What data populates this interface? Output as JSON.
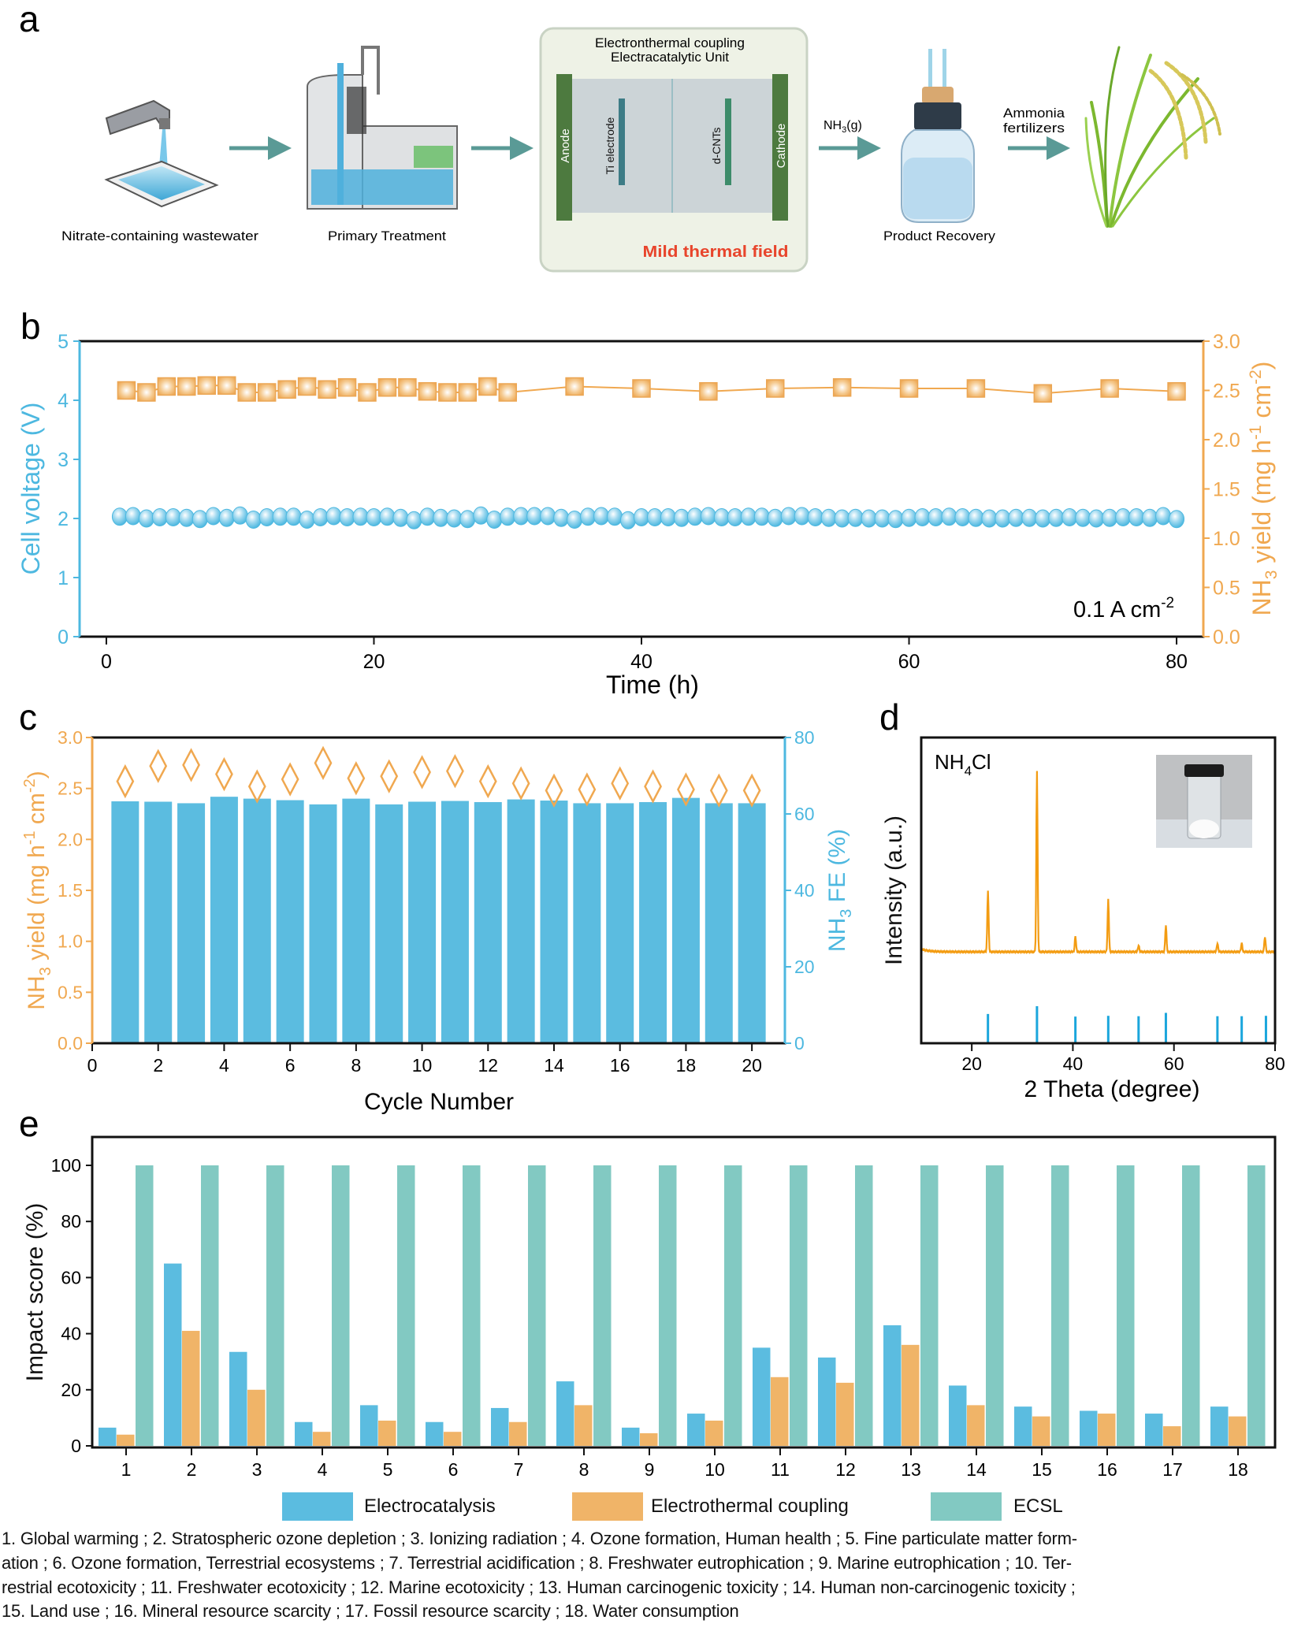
{
  "panel_labels": {
    "a": "a",
    "b": "b",
    "c": "c",
    "d": "d",
    "e": "e"
  },
  "colors": {
    "electrocatalysis": "#5BBCE0",
    "electrothermal": "#F0B468",
    "ecsl": "#82C9C2",
    "voltage": "#4DB8E0",
    "yield": "#F0A850",
    "xrd": "#F39C12",
    "reference": "#1BA6DC",
    "thermal_text": "#E8452C",
    "arrow": "#5A9A96"
  },
  "schematic": {
    "step1": "Nitrate-containing wastewater",
    "step2": "Primary Treatment",
    "unit_title_1": "Electronthermal coupling",
    "unit_title_2": "Electracatalytic Unit",
    "anode": "Anode",
    "ti_electrode": "Ti electrode",
    "dcnts": "d-CNTs",
    "cathode": "Cathode",
    "thermal": "Mild thermal field",
    "nh3_main": "NH",
    "nh3_sub": "3",
    "nh3_tail": "(g)",
    "step4": "Product Recovery",
    "fert_1": "Ammonia",
    "fert_2": "fertilizers"
  },
  "chart_data": [
    {
      "panel": "b",
      "type": "scatter",
      "xlabel": "Time (h)",
      "xlim": [
        -2,
        82
      ],
      "xticks": [
        "0",
        "20",
        "40",
        "60",
        "80"
      ],
      "ylabel_left": "Cell voltage (V)",
      "ylim_left": [
        0,
        5
      ],
      "yticks_left": [
        "0",
        "1",
        "2",
        "3",
        "4",
        "5"
      ],
      "ylabel_right_parts": [
        "NH",
        "3",
        " yield (mg h",
        "-1",
        " cm",
        "-2",
        ")"
      ],
      "ylim_right": [
        0,
        3.0
      ],
      "yticks_right": [
        "0.0",
        "0.5",
        "1.0",
        "1.5",
        "2.0",
        "2.5",
        "3.0"
      ],
      "annotation_parts": [
        "0.1 A cm",
        "-2"
      ],
      "voltage": {
        "marker": "circle",
        "x": [
          1,
          2,
          3,
          4,
          5,
          6,
          7,
          8,
          9,
          10,
          11,
          12,
          13,
          14,
          15,
          16,
          17,
          18,
          19,
          20,
          21,
          22,
          23,
          24,
          25,
          26,
          27,
          28,
          29,
          30,
          31,
          32,
          33,
          34,
          35,
          36,
          37,
          38,
          39,
          40,
          41,
          42,
          43,
          44,
          45,
          46,
          47,
          48,
          49,
          50,
          51,
          52,
          53,
          54,
          55,
          56,
          57,
          58,
          59,
          60,
          61,
          62,
          63,
          64,
          65,
          66,
          67,
          68,
          69,
          70,
          71,
          72,
          73,
          74,
          75,
          76,
          77,
          78,
          79,
          80
        ],
        "y": [
          2.03,
          2.04,
          2.0,
          2.02,
          2.02,
          2.01,
          1.99,
          2.04,
          2.01,
          2.05,
          1.98,
          2.02,
          2.03,
          2.03,
          1.98,
          2.02,
          2.04,
          2.02,
          2.03,
          2.02,
          2.03,
          2.01,
          1.97,
          2.03,
          2.01,
          2.0,
          1.99,
          2.05,
          1.98,
          2.03,
          2.04,
          2.04,
          2.04,
          2.01,
          1.98,
          2.03,
          2.04,
          2.03,
          1.97,
          2.02,
          2.02,
          2.02,
          2.01,
          2.03,
          2.04,
          2.02,
          2.02,
          2.03,
          2.03,
          2.01,
          2.04,
          2.04,
          2.02,
          2.01,
          2.0,
          2.01,
          2.0,
          2.0,
          1.99,
          2.01,
          2.02,
          2.02,
          2.03,
          2.02,
          2.01,
          2.0,
          2.0,
          2.01,
          2.01,
          2.0,
          2.01,
          2.02,
          2.01,
          2.0,
          2.01,
          2.02,
          2.02,
          2.01,
          2.04,
          1.99
        ]
      },
      "nh3_yield": {
        "marker": "square",
        "x": [
          1.5,
          3,
          4.5,
          6,
          7.5,
          9,
          10.5,
          12,
          13.5,
          15,
          16.5,
          18,
          19.5,
          21,
          22.5,
          24,
          25.5,
          27,
          28.5,
          30,
          35,
          40,
          45,
          50,
          55,
          60,
          65,
          70,
          75,
          80
        ],
        "y": [
          2.5,
          2.48,
          2.54,
          2.54,
          2.55,
          2.55,
          2.48,
          2.48,
          2.51,
          2.54,
          2.51,
          2.53,
          2.48,
          2.53,
          2.53,
          2.49,
          2.48,
          2.48,
          2.54,
          2.48,
          2.54,
          2.52,
          2.49,
          2.52,
          2.53,
          2.52,
          2.52,
          2.47,
          2.52,
          2.49
        ]
      }
    },
    {
      "panel": "c",
      "type": "bar",
      "xlabel": "Cycle Number",
      "xlim": [
        0,
        21
      ],
      "xticks": [
        "0",
        "2",
        "4",
        "6",
        "8",
        "10",
        "12",
        "14",
        "16",
        "18",
        "20"
      ],
      "ylabel_left_parts": [
        "NH",
        "3",
        " yield (mg h",
        "-1",
        " cm",
        "-2",
        ")"
      ],
      "ylim_left": [
        0,
        3.0
      ],
      "yticks_left": [
        "0.0",
        "0.5",
        "1.0",
        "1.5",
        "2.0",
        "2.5",
        "3.0"
      ],
      "ylabel_right_parts": [
        "NH",
        "3",
        " FE (%)"
      ],
      "ylim_right": [
        0,
        80
      ],
      "yticks_right": [
        "0",
        "20",
        "40",
        "60",
        "80"
      ],
      "cycles": [
        1,
        2,
        3,
        4,
        5,
        6,
        7,
        8,
        9,
        10,
        11,
        12,
        13,
        14,
        15,
        16,
        17,
        18,
        19,
        20
      ],
      "fe_bars": [
        63.3,
        63.2,
        62.8,
        64.5,
        64.0,
        63.6,
        62.5,
        64.0,
        62.5,
        63.2,
        63.4,
        63.1,
        63.8,
        63.5,
        62.8,
        62.8,
        63.1,
        64.2,
        62.8,
        62.8
      ],
      "yield_diamonds": [
        2.57,
        2.72,
        2.73,
        2.64,
        2.52,
        2.59,
        2.75,
        2.6,
        2.62,
        2.66,
        2.67,
        2.57,
        2.55,
        2.48,
        2.49,
        2.55,
        2.52,
        2.49,
        2.48,
        2.48
      ]
    },
    {
      "panel": "d",
      "type": "line",
      "xlabel": "2 Theta (degree)",
      "ylabel": "Intensity (a.u.)",
      "xlim": [
        10,
        80
      ],
      "xticks": [
        "20",
        "40",
        "60",
        "80"
      ],
      "sample_parts": [
        "NH",
        "4",
        "Cl"
      ],
      "peaks_2theta": [
        23.2,
        32.9,
        40.5,
        47.0,
        53.0,
        58.4,
        68.6,
        73.4,
        78.0
      ],
      "peak_relative_intensity": [
        0.34,
        1.0,
        0.087,
        0.29,
        0.036,
        0.15,
        0.048,
        0.048,
        0.084
      ],
      "reference_2theta": [
        23.2,
        32.9,
        40.5,
        47.0,
        53.0,
        58.4,
        68.6,
        73.4,
        78.2
      ],
      "reference_relative_intensity": [
        0.79,
        1.0,
        0.72,
        0.74,
        0.73,
        0.82,
        0.73,
        0.73,
        0.74
      ]
    },
    {
      "panel": "e",
      "type": "bar",
      "ylabel": "Impact score (%)",
      "ylim": [
        0,
        108
      ],
      "yticks": [
        "0",
        "20",
        "40",
        "60",
        "80",
        "100"
      ],
      "categories": [
        "1",
        "2",
        "3",
        "4",
        "5",
        "6",
        "7",
        "8",
        "9",
        "10",
        "11",
        "12",
        "13",
        "14",
        "15",
        "16",
        "17",
        "18"
      ],
      "series": [
        {
          "name": "Electrocatalysis",
          "values": [
            6.5,
            65,
            33.5,
            8.5,
            14.5,
            8.5,
            13.5,
            23,
            6.5,
            11.5,
            35,
            31.5,
            43,
            21.5,
            14,
            12.5,
            11.5,
            14
          ]
        },
        {
          "name": "Electrothermal coupling",
          "values": [
            4,
            41,
            20,
            5,
            9,
            5,
            8.5,
            14.5,
            4.5,
            9,
            24.5,
            22.5,
            36,
            14.5,
            10.5,
            11.5,
            7,
            10.5
          ]
        },
        {
          "name": "ECSL",
          "values": [
            100,
            100,
            100,
            100,
            100,
            100,
            100,
            100,
            100,
            100,
            100,
            100,
            100,
            100,
            100,
            100,
            100,
            100
          ]
        }
      ],
      "legend_placement": "bottom",
      "footnote_lines": [
        "1. Global warming ; 2. Stratospheric ozone depletion ; 3. Ionizing radiation ; 4. Ozone formation, Human health ; 5. Fine particulate matter form-",
        "ation ; 6. Ozone formation, Terrestrial ecosystems ; 7. Terrestrial acidification ; 8. Freshwater eutrophication ; 9. Marine eutrophication ; 10. Ter-",
        "restrial ecotoxicity ; 11. Freshwater ecotoxicity ; 12. Marine ecotoxicity ; 13. Human carcinogenic toxicity ; 14. Human non-carcinogenic toxicity ;",
        "15. Land use ; 16. Mineral resource scarcity ; 17. Fossil resource scarcity ; 18. Water consumption"
      ]
    }
  ]
}
